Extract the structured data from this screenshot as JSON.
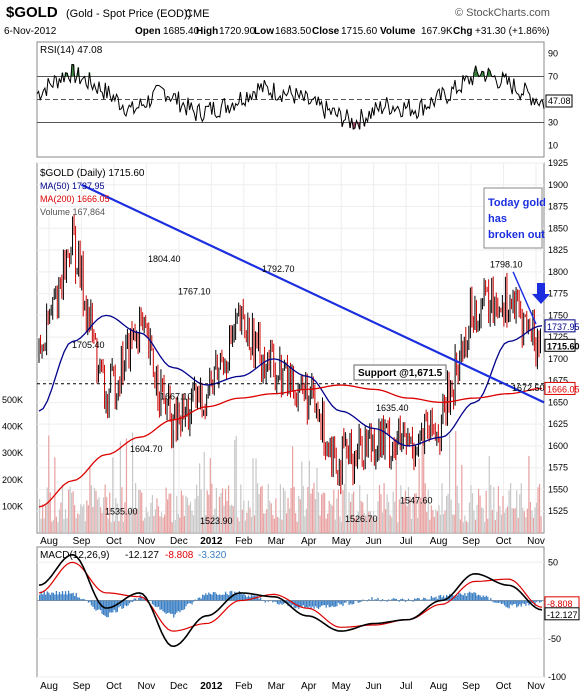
{
  "header": {
    "symbol": "$GOLD",
    "name": "(Gold - Spot Price (EOD))",
    "exchange": "CME",
    "date": "6-Nov-2012",
    "open": "1685.40",
    "high": "1720.90",
    "low": "1683.50",
    "close": "1715.60",
    "volume": "167.9K",
    "chg": "+31.30 (+1.86%)",
    "watermark": "© StockCharts.com"
  },
  "labels": {
    "open": "Open",
    "high": "High",
    "low": "Low",
    "close": "Close",
    "volume": "Volume",
    "chg": "Chg",
    "rsi": "RSI(14) 47.08",
    "price_title": "$GOLD (Daily) 1715.60",
    "ma50": "MA(50) 1737.95",
    "ma200": "MA(200) 1666.05",
    "vol": "Volume 167,864",
    "macd": "MACD(12,26,9)",
    "macd_v1": "-12.127",
    "macd_v2": "-8.808",
    "macd_v3": "-3.320",
    "support": "Support @1,671.5",
    "note": [
      "Today gold",
      "has",
      "broken out"
    ]
  },
  "colors": {
    "up": "#000000",
    "down": "#cc0000",
    "ma50": "#00008b",
    "ma200": "#dd0000",
    "trend": "#1a2ee0",
    "rsi_fill": "#2e7d32",
    "macd_hist": "#3b7fc4",
    "note": "#1a2ee0"
  },
  "chart_data": [
    {
      "type": "line",
      "title": "RSI(14) 47.08",
      "ylim": [
        0,
        100
      ],
      "yticks": [
        10,
        30,
        50,
        70,
        90
      ],
      "last_value": 47.08,
      "reference_lines": [
        30,
        50,
        70
      ],
      "series": [
        {
          "name": "RSI(14)",
          "x": [
            "Jul",
            "Aug",
            "Sep",
            "Oct",
            "Nov",
            "Dec",
            "2012",
            "Feb",
            "Mar",
            "Apr",
            "May",
            "Jun",
            "Jul",
            "Aug",
            "Sep",
            "Oct",
            "Nov"
          ],
          "values": [
            55,
            74,
            60,
            40,
            58,
            38,
            45,
            60,
            55,
            42,
            30,
            45,
            42,
            55,
            74,
            62,
            47
          ]
        }
      ]
    },
    {
      "type": "line",
      "title": "$GOLD (Daily) 1715.60",
      "ylim": [
        1500,
        1925
      ],
      "yticks": [
        1525,
        1550,
        1575,
        1600,
        1625,
        1650,
        1675,
        1700,
        1725,
        1750,
        1775,
        1800,
        1825,
        1850,
        1875,
        1900,
        1925
      ],
      "x": [
        "Aug",
        "Sep",
        "Oct",
        "Nov",
        "Dec",
        "2012",
        "Feb",
        "Mar",
        "Apr",
        "May",
        "Jun",
        "Jul",
        "Aug",
        "Sep",
        "Oct",
        "Nov"
      ],
      "series": [
        {
          "name": "$GOLD (Daily)",
          "values": [
            1700,
            1840,
            1650,
            1740,
            1620,
            1660,
            1740,
            1690,
            1660,
            1580,
            1610,
            1600,
            1620,
            1760,
            1770,
            1715
          ]
        },
        {
          "name": "MA(50)",
          "values": [
            1640,
            1720,
            1750,
            1730,
            1690,
            1670,
            1680,
            1700,
            1680,
            1640,
            1620,
            1600,
            1610,
            1650,
            1720,
            1738
          ]
        },
        {
          "name": "MA(200)",
          "values": [
            1530,
            1560,
            1590,
            1610,
            1630,
            1645,
            1655,
            1660,
            1665,
            1670,
            1665,
            1655,
            1650,
            1655,
            1660,
            1666
          ]
        }
      ],
      "price_annotations": [
        {
          "x": "Aug",
          "value": 1705.4
        },
        {
          "x": "Sep",
          "value": 1535.0
        },
        {
          "x": "Oct",
          "value": 1604.7
        },
        {
          "x": "Nov",
          "value": 1804.4
        },
        {
          "x": "Nov",
          "value": 1767.1
        },
        {
          "x": "Nov",
          "value": 1667.1
        },
        {
          "x": "Dec",
          "value": 1523.9
        },
        {
          "x": "Feb",
          "value": 1792.7
        },
        {
          "x": "May",
          "value": 1526.7
        },
        {
          "x": "Jun",
          "value": 1635.4
        },
        {
          "x": "Jul",
          "value": 1547.6
        },
        {
          "x": "Oct",
          "value": 1798.1
        },
        {
          "x": "Nov",
          "value": 1672.5
        }
      ],
      "right_value_labels": [
        "1737.95",
        "1715.60",
        "1666.05"
      ],
      "support_level": 1671.5,
      "trendlines": [
        {
          "from": {
            "x": "Sep",
            "value": 1900
          },
          "to": {
            "x": "Nov",
            "value": 1650
          }
        },
        {
          "from": {
            "x": "Oct",
            "value": 1800
          },
          "to": {
            "x": "Nov",
            "value": 1740
          }
        }
      ],
      "volume": {
        "title": "Volume 167,864",
        "yticks": [
          "100K",
          "200K",
          "300K",
          "400K",
          "500K"
        ],
        "ylim": [
          0,
          500000
        ],
        "last": 167864
      }
    },
    {
      "type": "line",
      "title": "MACD(12,26,9) -12.127, -8.808, -3.320",
      "ylim": [
        -100,
        70
      ],
      "yticks": [
        -100,
        -50,
        0,
        50
      ],
      "x": [
        "Aug",
        "Sep",
        "Oct",
        "Nov",
        "Dec",
        "2012",
        "Feb",
        "Mar",
        "Apr",
        "May",
        "Jun",
        "Jul",
        "Aug",
        "Sep",
        "Oct",
        "Nov"
      ],
      "right_value_labels": [
        "-8.808",
        "-12.127"
      ],
      "series": [
        {
          "name": "MACD",
          "values": [
            20,
            60,
            -10,
            10,
            -60,
            -20,
            10,
            5,
            -20,
            -40,
            -30,
            -25,
            0,
            35,
            20,
            -12.127
          ]
        },
        {
          "name": "Signal",
          "values": [
            10,
            50,
            10,
            5,
            -40,
            -30,
            0,
            8,
            -10,
            -35,
            -32,
            -25,
            -5,
            25,
            28,
            -8.808
          ]
        },
        {
          "name": "Histogram",
          "values": [
            10,
            10,
            -20,
            5,
            -20,
            10,
            10,
            -3,
            -10,
            -5,
            2,
            0,
            5,
            10,
            -8,
            -3.32
          ]
        }
      ]
    }
  ]
}
